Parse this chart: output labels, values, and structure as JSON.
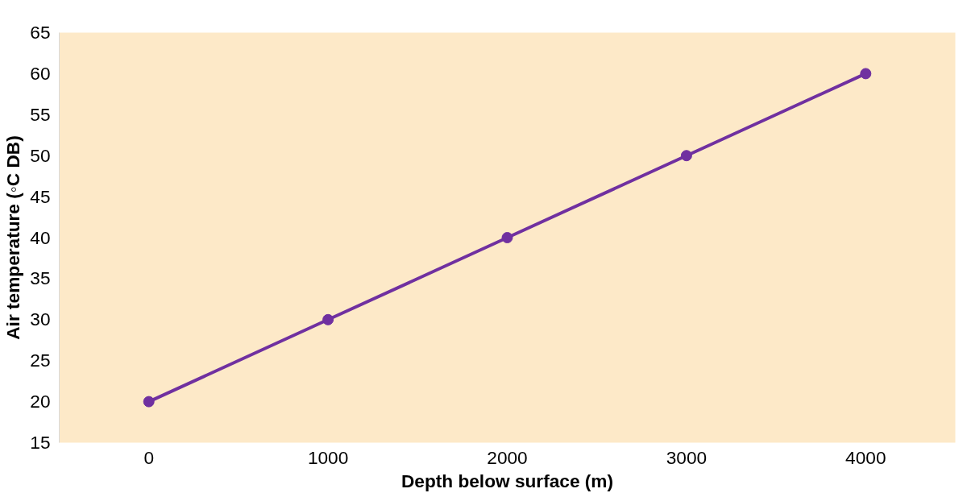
{
  "chart_data": {
    "type": "line",
    "xlabel": "Depth below surface (m)",
    "ylabel": "Air temperature (◦C DB)",
    "x": [
      0,
      1000,
      2000,
      3000,
      4000
    ],
    "series": [
      {
        "color": "#7030a0",
        "values": [
          20,
          30,
          40,
          50,
          60
        ]
      }
    ],
    "xlim": [
      -500,
      4500
    ],
    "xticks": [
      0,
      1000,
      2000,
      3000,
      4000
    ],
    "ylim": [
      15,
      65
    ],
    "yticks": [
      15,
      20,
      25,
      30,
      35,
      40,
      45,
      50,
      55,
      60,
      65
    ],
    "grid": false,
    "marker": "circle",
    "line_style": "solid"
  }
}
